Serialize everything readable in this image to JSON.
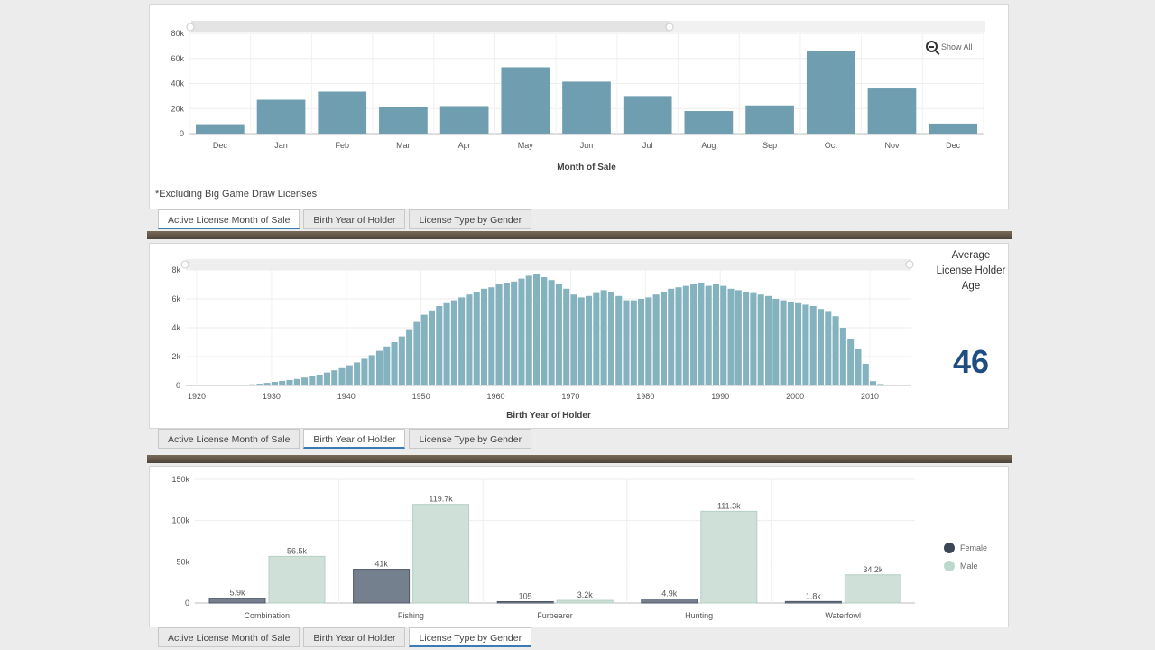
{
  "tabs": [
    "Active License Month of Sale",
    "Birth Year of Holder",
    "License Type by Gender"
  ],
  "footnote": "*Excluding Big Game Draw Licenses",
  "show_all_label": "Show All",
  "kpi": {
    "label": "Average License Holder Age",
    "value": "46"
  },
  "colors": {
    "bar_blue": "#6f9eb0",
    "hist_teal": "#84b3bf",
    "female": "#75808f",
    "male": "#cfe0d8",
    "female_legend": "#3b4656",
    "male_legend": "#bcd7cb"
  },
  "chart_data": [
    {
      "type": "bar",
      "xlabel": "Month of Sale",
      "categories": [
        "Dec",
        "Jan",
        "Feb",
        "Mar",
        "Apr",
        "May",
        "Jun",
        "Jul",
        "Aug",
        "Sep",
        "Oct",
        "Nov",
        "Dec"
      ],
      "values": [
        7500,
        27000,
        33500,
        21000,
        22000,
        53000,
        41500,
        30000,
        18000,
        22500,
        66000,
        36000,
        8000
      ],
      "ylim": [
        0,
        80000
      ],
      "yticks": [
        "0",
        "20k",
        "40k",
        "60k",
        "80k"
      ],
      "grid": true
    },
    {
      "type": "bar",
      "xlabel": "Birth Year of Holder",
      "x_start": 1920,
      "x_end": 2017,
      "values": [
        0,
        0,
        0,
        10,
        20,
        30,
        50,
        80,
        120,
        180,
        250,
        320,
        380,
        450,
        550,
        650,
        750,
        900,
        1050,
        1200,
        1400,
        1600,
        1850,
        2100,
        2400,
        2700,
        3000,
        3400,
        3900,
        4400,
        4900,
        5200,
        5500,
        5700,
        5900,
        6100,
        6300,
        6500,
        6700,
        6800,
        7000,
        7100,
        7200,
        7400,
        7600,
        7700,
        7500,
        7300,
        7000,
        6700,
        6300,
        6100,
        6200,
        6400,
        6600,
        6500,
        6200,
        5900,
        5900,
        6000,
        6100,
        6300,
        6500,
        6700,
        6800,
        6900,
        7000,
        7100,
        6900,
        7000,
        6900,
        6700,
        6600,
        6500,
        6400,
        6300,
        6200,
        6000,
        5900,
        5800,
        5700,
        5600,
        5500,
        5300,
        5100,
        4800,
        4000,
        3200,
        2500,
        1500,
        300,
        100,
        50,
        20,
        10,
        0,
        0
      ],
      "ylim": [
        0,
        8000
      ],
      "yticks": [
        "0",
        "2k",
        "4k",
        "6k",
        "8k"
      ],
      "xticks": [
        "1920",
        "1930",
        "1940",
        "1950",
        "1960",
        "1970",
        "1980",
        "1990",
        "2000",
        "2010"
      ],
      "grid": true
    },
    {
      "type": "bar",
      "categories": [
        "Combination",
        "Fishing",
        "Furbearer",
        "Hunting",
        "Waterfowl"
      ],
      "series": [
        {
          "name": "Female",
          "values": [
            5900,
            41000,
            105,
            4900,
            1800
          ],
          "labels": [
            "5.9k",
            "41k",
            "105",
            "4.9k",
            "1.8k"
          ]
        },
        {
          "name": "Male",
          "values": [
            56500,
            119700,
            3200,
            111300,
            34200
          ],
          "labels": [
            "56.5k",
            "119.7k",
            "3.2k",
            "111.3k",
            "34.2k"
          ]
        }
      ],
      "ylim": [
        0,
        150000
      ],
      "yticks": [
        "0",
        "50k",
        "100k",
        "150k"
      ],
      "legend": "right",
      "grid": true
    }
  ]
}
